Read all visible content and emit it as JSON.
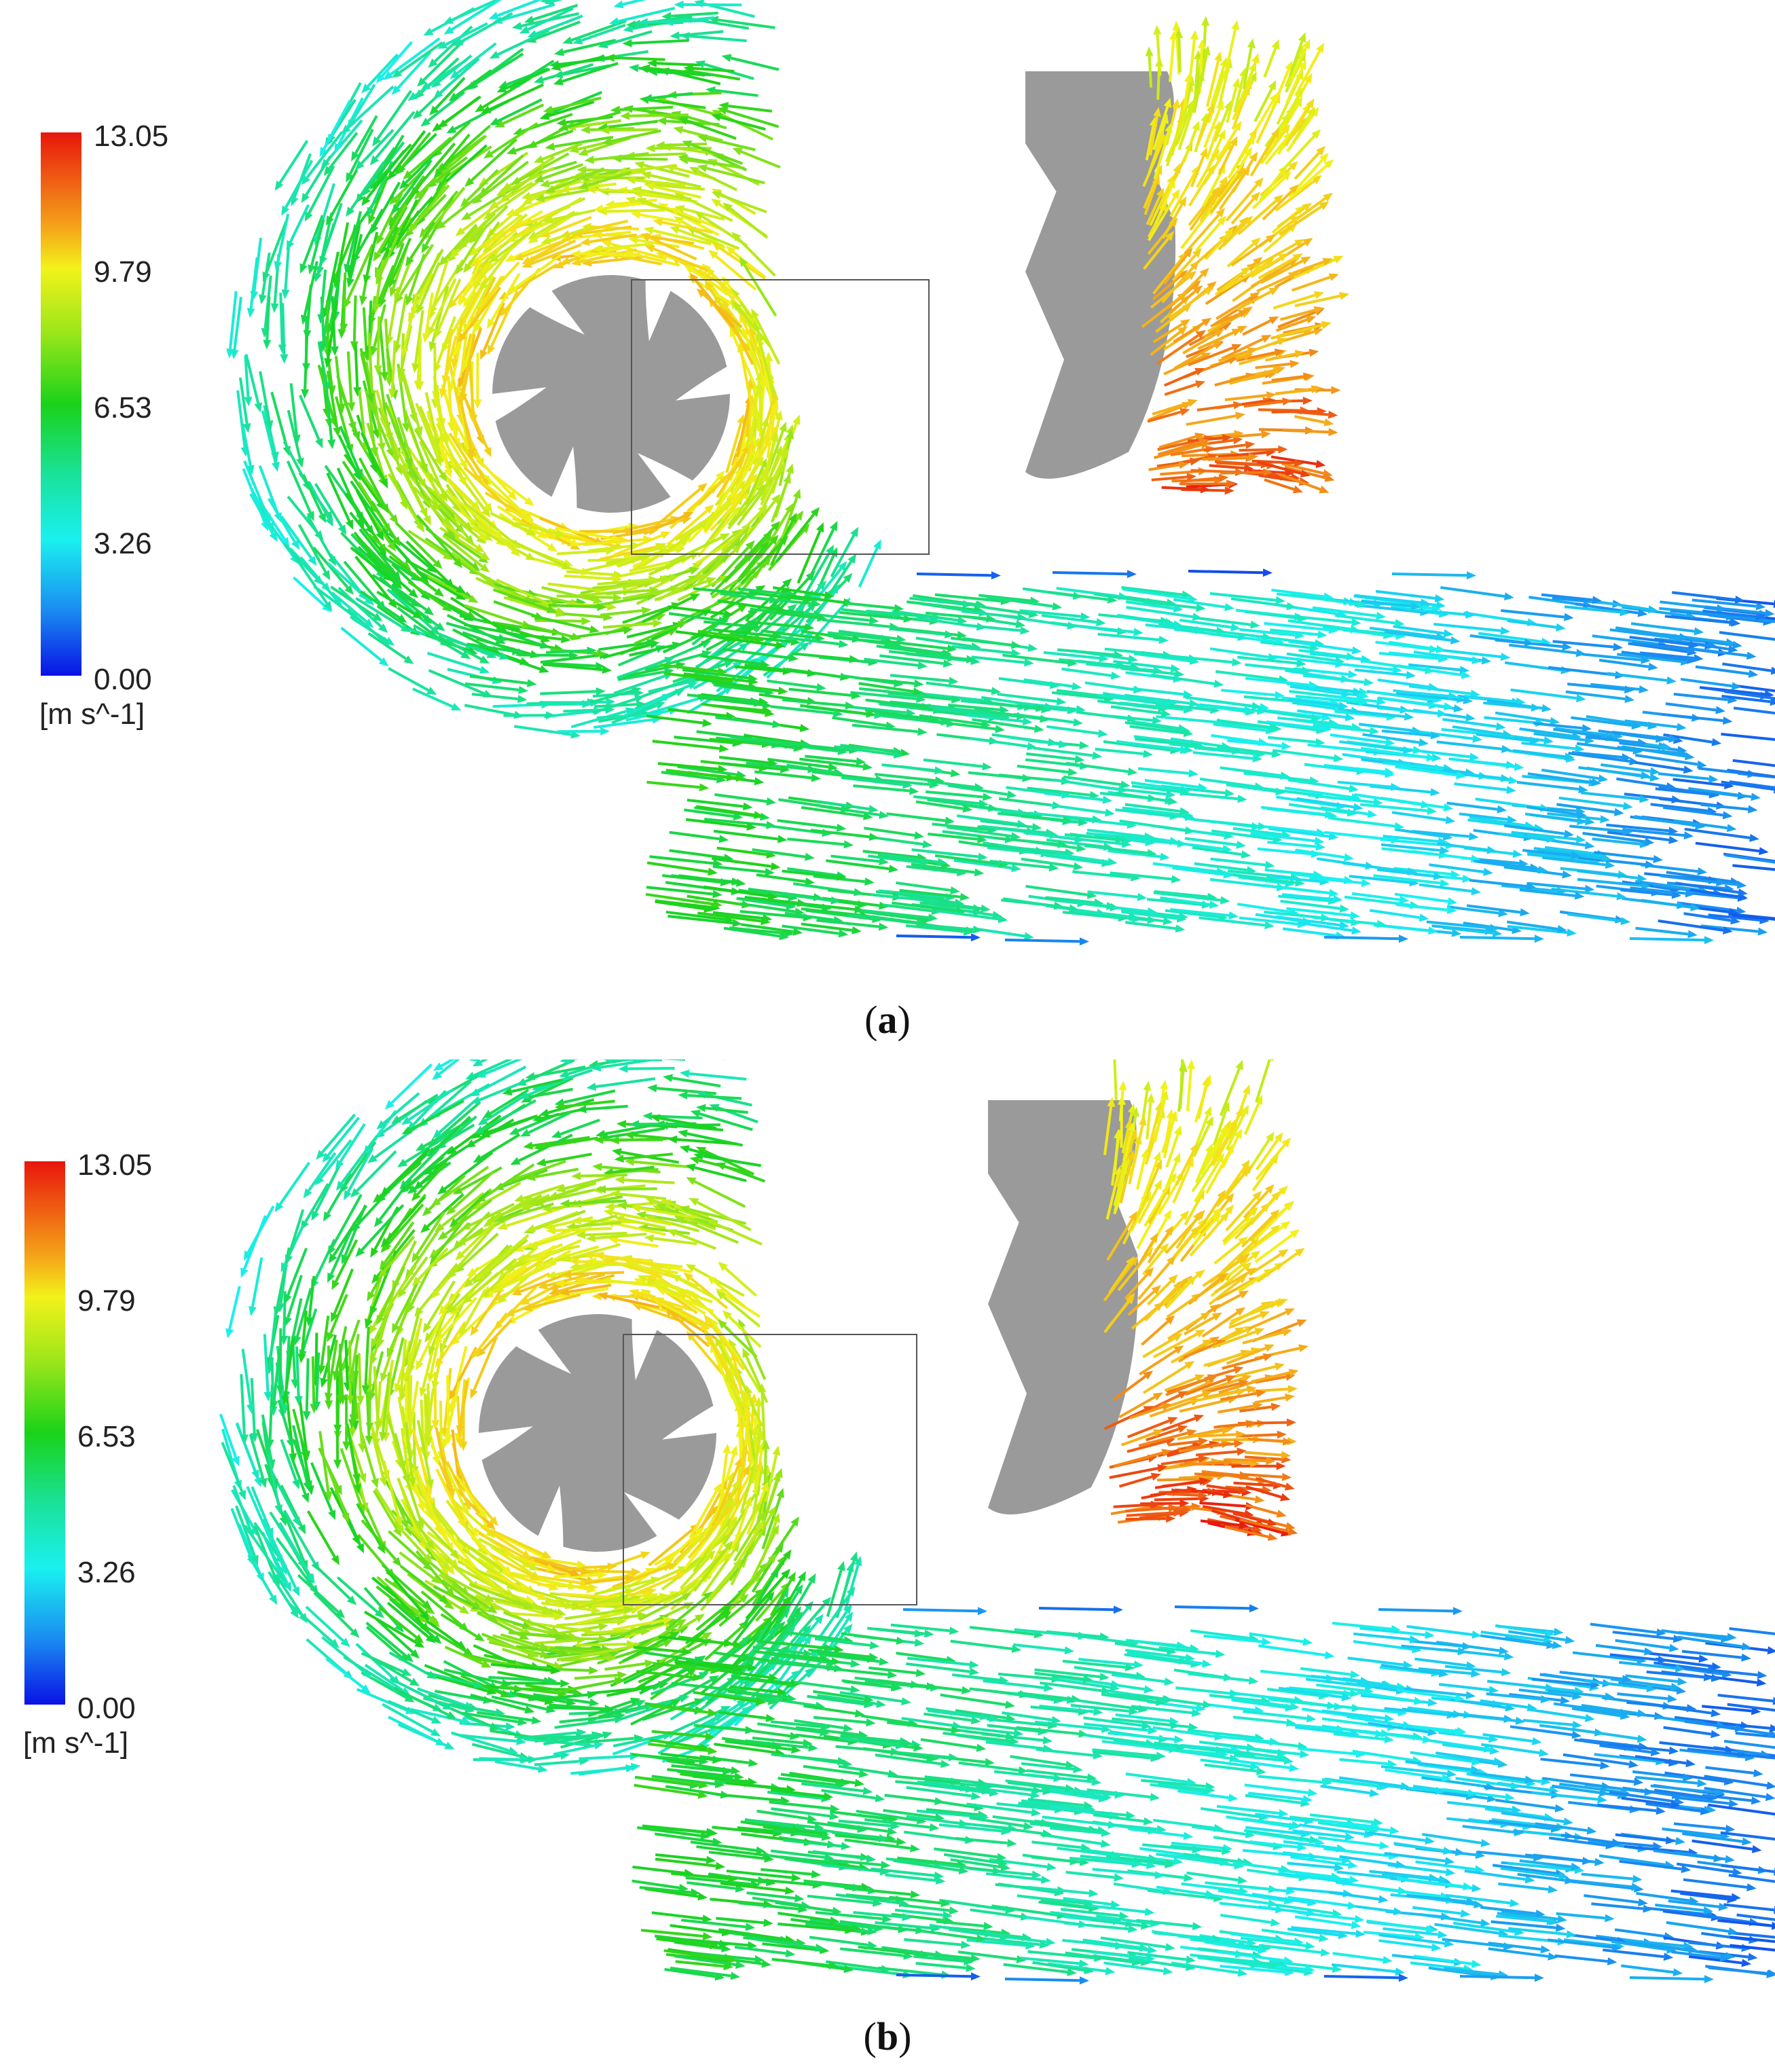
{
  "panels": [
    {
      "label_open": "(",
      "label_letter": "a",
      "label_close": ")",
      "legend": {
        "ticks": [
          "13.05",
          "9.79",
          "6.53",
          "3.26",
          "0.00"
        ],
        "unit": "[m s^-1]",
        "max": 13.05,
        "min": 0.0
      }
    },
    {
      "label_open": "(",
      "label_letter": "b",
      "label_close": ")",
      "legend": {
        "ticks": [
          "13.05",
          "9.79",
          "6.53",
          "3.26",
          "0.00"
        ],
        "unit": "[m s^-1]",
        "max": 13.05,
        "min": 0.0
      }
    }
  ],
  "colors": {
    "impeller": "#9a9a9a",
    "zoom_box": "#555555",
    "colormap": [
      "#0a12e6",
      "#1a8cf0",
      "#1af0f0",
      "#1ae29a",
      "#1ad21a",
      "#9ae61a",
      "#f2f21a",
      "#f5a91a",
      "#e8160c"
    ]
  }
}
